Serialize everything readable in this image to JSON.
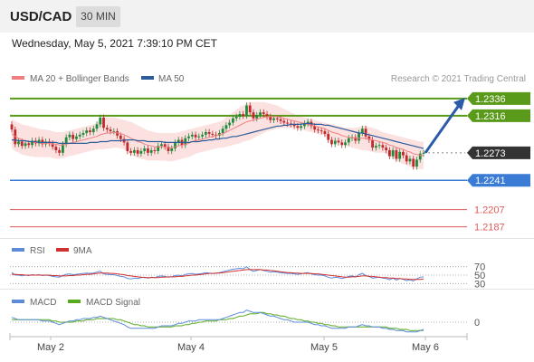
{
  "header": {
    "symbol": "USD/CAD",
    "timeframe": "30 MIN",
    "datetime": "Wednesday, May 5, 2021 7:39:10 PM CET"
  },
  "colors": {
    "up_candle": "#1f8a3a",
    "down_candle": "#c0282a",
    "bollinger_fill": "#fbdcdc",
    "ma20": "#f08080",
    "ma50": "#2e5c9a",
    "resistance": "#5a9a1a",
    "current": "#333333",
    "support": "#3a7bd5",
    "lower_level": "#e05a5a",
    "arrow": "#2b5aa8",
    "rsi": "#5b8bd9",
    "rsi_ma": "#d03030",
    "macd": "#5b8bd9",
    "macd_signal": "#5aaa20"
  },
  "chart_data": [
    {
      "type": "candlestick",
      "name": "price",
      "legend": [
        {
          "label": "MA 20 + Bollinger Bands",
          "color": "#f08080"
        },
        {
          "label": "MA 50",
          "color": "#2e5c9a"
        }
      ],
      "credit": "Research © 2021 Trading Central",
      "x_ticks": [
        "May 2",
        "May 4",
        "May 5",
        "May 6"
      ],
      "ylim": [
        1.2175,
        1.2358
      ],
      "levels": [
        {
          "value": 1.2336,
          "label": "1.2336",
          "kind": "resistance"
        },
        {
          "value": 1.2316,
          "label": "1.2316",
          "kind": "resistance"
        },
        {
          "value": 1.2273,
          "label": "1.2273",
          "kind": "current"
        },
        {
          "value": 1.2241,
          "label": "1.2241",
          "kind": "support"
        },
        {
          "value": 1.2207,
          "label": "1.2207",
          "kind": "lower"
        },
        {
          "value": 1.2187,
          "label": "1.2187",
          "kind": "lower"
        }
      ],
      "close": [
        1.23,
        1.2283,
        1.2286,
        1.2281,
        1.2284,
        1.2282,
        1.2287,
        1.2284,
        1.2288,
        1.2283,
        1.2286,
        1.2284,
        1.228,
        1.2276,
        1.2273,
        1.2283,
        1.2291,
        1.2294,
        1.2289,
        1.2292,
        1.2294,
        1.2296,
        1.2299,
        1.2297,
        1.2301,
        1.2306,
        1.2314,
        1.2302,
        1.23,
        1.2298,
        1.2298,
        1.2293,
        1.2289,
        1.2285,
        1.2275,
        1.2273,
        1.2276,
        1.2272,
        1.2275,
        1.2278,
        1.2273,
        1.2276,
        1.2275,
        1.2281,
        1.2283,
        1.228,
        1.2275,
        1.2278,
        1.2285,
        1.2288,
        1.2282,
        1.229,
        1.2292,
        1.2294,
        1.2291,
        1.2292,
        1.2294,
        1.2297,
        1.2295,
        1.2294,
        1.2293,
        1.2296,
        1.2301,
        1.2305,
        1.2308,
        1.2313,
        1.2315,
        1.2318,
        1.2316,
        1.2328,
        1.232,
        1.2313,
        1.2317,
        1.232,
        1.2318,
        1.2315,
        1.2311,
        1.2313,
        1.2312,
        1.231,
        1.2308,
        1.2307,
        1.2306,
        1.2304,
        1.2302,
        1.2304,
        1.2307,
        1.2309,
        1.2304,
        1.23,
        1.2299,
        1.2298,
        1.2295,
        1.2288,
        1.2283,
        1.2287,
        1.2285,
        1.2282,
        1.2285,
        1.229,
        1.2291,
        1.2287,
        1.2296,
        1.2301,
        1.2292,
        1.2288,
        1.2279,
        1.2281,
        1.2282,
        1.2279,
        1.2276,
        1.2269,
        1.2276,
        1.2266,
        1.2274,
        1.227,
        1.2263,
        1.2266,
        1.2257,
        1.2265,
        1.2272,
        1.2273
      ],
      "ma20": [
        1.2295,
        1.2292,
        1.229,
        1.2288,
        1.2287,
        1.2286,
        1.2286,
        1.2285,
        1.2285,
        1.2284,
        1.2284,
        1.2284,
        1.2283,
        1.2283,
        1.2282,
        1.2282,
        1.2283,
        1.2284,
        1.2285,
        1.2286,
        1.2287,
        1.2288,
        1.2289,
        1.229,
        1.2291,
        1.2292,
        1.2294,
        1.2295,
        1.2296,
        1.2296,
        1.2297,
        1.2296,
        1.2295,
        1.2294,
        1.2292,
        1.229,
        1.2288,
        1.2286,
        1.2285,
        1.2283,
        1.2282,
        1.2281,
        1.228,
        1.228,
        1.228,
        1.228,
        1.2279,
        1.2279,
        1.228,
        1.2281,
        1.2282,
        1.2283,
        1.2284,
        1.2286,
        1.2287,
        1.2288,
        1.2289,
        1.229,
        1.2291,
        1.2292,
        1.2293,
        1.2294,
        1.2295,
        1.2297,
        1.2299,
        1.2301,
        1.2303,
        1.2305,
        1.2307,
        1.2309,
        1.231,
        1.2311,
        1.2312,
        1.2313,
        1.2314,
        1.2315,
        1.2315,
        1.2315,
        1.2315,
        1.2314,
        1.2313,
        1.2312,
        1.2311,
        1.231,
        1.2309,
        1.2308,
        1.2307,
        1.2306,
        1.2305,
        1.2304,
        1.2303,
        1.2302,
        1.2301,
        1.2299,
        1.2297,
        1.2296,
        1.2295,
        1.2293,
        1.2292,
        1.2291,
        1.2291,
        1.229,
        1.229,
        1.229,
        1.229,
        1.2289,
        1.2288,
        1.2287,
        1.2286,
        1.2285,
        1.2284,
        1.2282,
        1.2281,
        1.2279,
        1.2278,
        1.2277,
        1.2275,
        1.2274,
        1.2272,
        1.2271,
        1.227,
        1.227
      ],
      "bb_upper": [
        1.2312,
        1.231,
        1.2308,
        1.2306,
        1.2305,
        1.2304,
        1.2303,
        1.2302,
        1.2301,
        1.23,
        1.23,
        1.2299,
        1.2298,
        1.2297,
        1.2297,
        1.2297,
        1.2298,
        1.2299,
        1.23,
        1.2301,
        1.2302,
        1.2303,
        1.2304,
        1.2305,
        1.2306,
        1.2308,
        1.2312,
        1.2313,
        1.2314,
        1.2314,
        1.2314,
        1.2313,
        1.2312,
        1.2311,
        1.231,
        1.2309,
        1.2307,
        1.2305,
        1.2303,
        1.2301,
        1.2299,
        1.2298,
        1.2297,
        1.2296,
        1.2296,
        1.2296,
        1.2296,
        1.2296,
        1.2296,
        1.2297,
        1.2298,
        1.2299,
        1.23,
        1.2301,
        1.2302,
        1.2303,
        1.2304,
        1.2305,
        1.2306,
        1.2307,
        1.2308,
        1.2309,
        1.2311,
        1.2314,
        1.2317,
        1.232,
        1.2323,
        1.2326,
        1.2328,
        1.2331,
        1.2332,
        1.2332,
        1.2332,
        1.2332,
        1.2332,
        1.2331,
        1.233,
        1.2329,
        1.2328,
        1.2326,
        1.2324,
        1.2322,
        1.232,
        1.2318,
        1.2316,
        1.2315,
        1.2314,
        1.2313,
        1.2312,
        1.2311,
        1.231,
        1.2309,
        1.2308,
        1.2307,
        1.2306,
        1.2305,
        1.2304,
        1.2303,
        1.2302,
        1.2302,
        1.2302,
        1.2302,
        1.2303,
        1.2304,
        1.2304,
        1.2303,
        1.2302,
        1.2301,
        1.2299,
        1.2297,
        1.2296,
        1.2295,
        1.2294,
        1.2293,
        1.2292,
        1.2291,
        1.229,
        1.2289,
        1.2288,
        1.2287,
        1.2286,
        1.2286
      ],
      "bb_lower": [
        1.2278,
        1.2275,
        1.2273,
        1.2271,
        1.227,
        1.2269,
        1.2269,
        1.2268,
        1.2268,
        1.2268,
        1.2268,
        1.2268,
        1.2267,
        1.2266,
        1.2266,
        1.2267,
        1.2268,
        1.2269,
        1.227,
        1.2271,
        1.2272,
        1.2273,
        1.2274,
        1.2275,
        1.2276,
        1.2277,
        1.2277,
        1.2277,
        1.2278,
        1.2278,
        1.2279,
        1.2279,
        1.2278,
        1.2277,
        1.2274,
        1.2271,
        1.2269,
        1.2267,
        1.2266,
        1.2265,
        1.2264,
        1.2264,
        1.2264,
        1.2264,
        1.2264,
        1.2264,
        1.2263,
        1.2263,
        1.2264,
        1.2265,
        1.2266,
        1.2267,
        1.2268,
        1.227,
        1.2272,
        1.2273,
        1.2274,
        1.2275,
        1.2276,
        1.2277,
        1.2278,
        1.2279,
        1.2279,
        1.228,
        1.2281,
        1.2282,
        1.2283,
        1.2284,
        1.2286,
        1.2287,
        1.2288,
        1.229,
        1.2292,
        1.2294,
        1.2296,
        1.2298,
        1.2299,
        1.23,
        1.2301,
        1.2302,
        1.2302,
        1.2302,
        1.2302,
        1.2302,
        1.2301,
        1.23,
        1.2299,
        1.2298,
        1.2297,
        1.2296,
        1.2295,
        1.2294,
        1.2293,
        1.2291,
        1.2288,
        1.2286,
        1.2285,
        1.2283,
        1.2281,
        1.228,
        1.2279,
        1.2278,
        1.2277,
        1.2276,
        1.2276,
        1.2275,
        1.2274,
        1.2273,
        1.2273,
        1.2273,
        1.2272,
        1.2269,
        1.2267,
        1.2264,
        1.2262,
        1.226,
        1.2259,
        1.2257,
        1.2255,
        1.2254,
        1.2254,
        1.2254
      ],
      "ma50": [
        1.2288,
        1.2288,
        1.2287,
        1.2287,
        1.2287,
        1.2286,
        1.2286,
        1.2286,
        1.2285,
        1.2285,
        1.2285,
        1.2285,
        1.2285,
        1.2285,
        1.2284,
        1.2284,
        1.2284,
        1.2284,
        1.2284,
        1.2284,
        1.2284,
        1.2284,
        1.2284,
        1.2285,
        1.2285,
        1.2285,
        1.2286,
        1.2286,
        1.2286,
        1.2287,
        1.2287,
        1.2287,
        1.2287,
        1.2288,
        1.2288,
        1.2288,
        1.2288,
        1.2287,
        1.2287,
        1.2287,
        1.2286,
        1.2286,
        1.2286,
        1.2286,
        1.2286,
        1.2285,
        1.2285,
        1.2285,
        1.2285,
        1.2285,
        1.2285,
        1.2285,
        1.2285,
        1.2286,
        1.2286,
        1.2286,
        1.2287,
        1.2287,
        1.2288,
        1.2288,
        1.2289,
        1.2289,
        1.229,
        1.229,
        1.2291,
        1.2292,
        1.2292,
        1.2293,
        1.2294,
        1.2295,
        1.2296,
        1.2297,
        1.2298,
        1.2299,
        1.23,
        1.2301,
        1.2302,
        1.2303,
        1.2304,
        1.2304,
        1.2305,
        1.2305,
        1.2306,
        1.2306,
        1.2306,
        1.2306,
        1.2307,
        1.2307,
        1.2307,
        1.2306,
        1.2306,
        1.2306,
        1.2305,
        1.2305,
        1.2304,
        1.2303,
        1.2302,
        1.2301,
        1.23,
        1.2299,
        1.2298,
        1.2297,
        1.2296,
        1.2296,
        1.2295,
        1.2294,
        1.2293,
        1.2292,
        1.2291,
        1.229,
        1.2289,
        1.2288,
        1.2287,
        1.2286,
        1.2285,
        1.2284,
        1.2283,
        1.2282,
        1.2281,
        1.228,
        1.2279,
        1.2278
      ]
    },
    {
      "type": "line",
      "name": "rsi",
      "legend": [
        {
          "label": "RSI",
          "color": "#5b8bd9"
        },
        {
          "label": "9MA",
          "color": "#d03030"
        }
      ],
      "levels": [
        {
          "value": 70,
          "label": "70"
        },
        {
          "value": 50,
          "label": "50"
        },
        {
          "value": 30,
          "label": "30"
        }
      ],
      "ylim": [
        20,
        80
      ],
      "rsi": [
        56,
        50,
        50,
        48,
        50,
        49,
        51,
        50,
        51,
        49,
        50,
        49,
        47,
        46,
        45,
        49,
        52,
        53,
        51,
        52,
        53,
        54,
        55,
        54,
        55,
        57,
        59,
        53,
        52,
        51,
        51,
        49,
        47,
        46,
        42,
        41,
        43,
        42,
        44,
        45,
        43,
        45,
        44,
        47,
        48,
        47,
        45,
        46,
        49,
        50,
        48,
        52,
        53,
        54,
        52,
        53,
        54,
        56,
        55,
        54,
        54,
        56,
        58,
        60,
        62,
        64,
        65,
        66,
        65,
        70,
        63,
        59,
        61,
        63,
        61,
        59,
        57,
        58,
        57,
        56,
        55,
        54,
        54,
        53,
        52,
        53,
        55,
        56,
        53,
        51,
        50,
        50,
        48,
        45,
        43,
        45,
        44,
        42,
        44,
        47,
        48,
        46,
        51,
        54,
        49,
        47,
        43,
        44,
        45,
        43,
        42,
        39,
        43,
        38,
        42,
        40,
        37,
        39,
        36,
        41,
        45,
        46
      ],
      "rsi_ma": [
        52,
        52,
        51,
        51,
        50,
        50,
        50,
        50,
        50,
        50,
        50,
        50,
        49,
        49,
        48,
        48,
        48,
        49,
        49,
        50,
        50,
        51,
        52,
        52,
        53,
        54,
        55,
        55,
        55,
        54,
        54,
        53,
        52,
        51,
        49,
        48,
        47,
        46,
        45,
        44,
        44,
        44,
        44,
        44,
        45,
        45,
        46,
        46,
        46,
        47,
        47,
        48,
        49,
        50,
        50,
        51,
        52,
        53,
        54,
        54,
        55,
        55,
        56,
        57,
        58,
        59,
        60,
        61,
        62,
        63,
        63,
        63,
        63,
        63,
        62,
        62,
        61,
        60,
        59,
        58,
        57,
        56,
        56,
        55,
        55,
        54,
        54,
        54,
        54,
        53,
        53,
        52,
        51,
        50,
        49,
        48,
        47,
        46,
        45,
        45,
        46,
        46,
        47,
        48,
        48,
        47,
        47,
        46,
        45,
        44,
        44,
        43,
        43,
        42,
        42,
        41,
        41,
        40,
        40,
        40,
        40,
        41
      ]
    },
    {
      "type": "line",
      "name": "macd",
      "legend": [
        {
          "label": "MACD",
          "color": "#5b8bd9"
        },
        {
          "label": "MACD Signal",
          "color": "#5aaa20"
        }
      ],
      "levels": [
        {
          "value": 0,
          "label": "0"
        }
      ],
      "ylim": [
        -0.0012,
        0.0012
      ],
      "macd": [
        0.0004,
        0.0003,
        0.0002,
        0.0002,
        0.0002,
        0.0002,
        0.0002,
        0.0002,
        0.0002,
        0.0001,
        0.0001,
        0.0001,
        0.0,
        -0.0001,
        -0.0002,
        -0.0001,
        0.0,
        0.0001,
        0.0001,
        0.0002,
        0.0002,
        0.0003,
        0.0003,
        0.0003,
        0.0004,
        0.0004,
        0.0005,
        0.0004,
        0.0003,
        0.0002,
        0.0001,
        0.0,
        -0.0001,
        -0.0002,
        -0.0004,
        -0.0005,
        -0.0005,
        -0.0005,
        -0.0005,
        -0.0005,
        -0.0005,
        -0.0005,
        -0.0005,
        -0.0004,
        -0.0003,
        -0.0003,
        -0.0003,
        -0.0003,
        -0.0002,
        -0.0001,
        -0.0001,
        0.0,
        0.0001,
        0.0001,
        0.0001,
        0.0002,
        0.0002,
        0.0002,
        0.0002,
        0.0002,
        0.0002,
        0.0002,
        0.0003,
        0.0004,
        0.0005,
        0.0006,
        0.0007,
        0.0008,
        0.0008,
        0.001,
        0.0009,
        0.0008,
        0.0008,
        0.0008,
        0.0007,
        0.0006,
        0.0005,
        0.0005,
        0.0004,
        0.0003,
        0.0002,
        0.0002,
        0.0001,
        0.0,
        0.0,
        0.0,
        0.0,
        0.0,
        -0.0001,
        -0.0002,
        -0.0002,
        -0.0003,
        -0.0003,
        -0.0004,
        -0.0005,
        -0.0005,
        -0.0005,
        -0.0005,
        -0.0005,
        -0.0004,
        -0.0004,
        -0.0004,
        -0.0003,
        -0.0002,
        -0.0003,
        -0.0003,
        -0.0004,
        -0.0004,
        -0.0004,
        -0.0005,
        -0.0005,
        -0.0006,
        -0.0006,
        -0.0007,
        -0.0007,
        -0.0007,
        -0.0008,
        -0.0008,
        -0.0008,
        -0.0008,
        -0.0007,
        -0.0006
      ],
      "signal": [
        0.0002,
        0.0002,
        0.0002,
        0.0002,
        0.0002,
        0.0002,
        0.0002,
        0.0002,
        0.0002,
        0.0002,
        0.0002,
        0.0002,
        0.0001,
        0.0001,
        0.0,
        0.0,
        0.0,
        0.0,
        0.0,
        0.0001,
        0.0001,
        0.0001,
        0.0002,
        0.0002,
        0.0002,
        0.0003,
        0.0003,
        0.0003,
        0.0003,
        0.0003,
        0.0003,
        0.0002,
        0.0002,
        0.0001,
        0.0,
        -0.0001,
        -0.0002,
        -0.0002,
        -0.0003,
        -0.0003,
        -0.0004,
        -0.0004,
        -0.0004,
        -0.0004,
        -0.0004,
        -0.0004,
        -0.0004,
        -0.0004,
        -0.0003,
        -0.0003,
        -0.0003,
        -0.0002,
        -0.0002,
        -0.0001,
        -0.0001,
        0.0,
        0.0,
        0.0001,
        0.0001,
        0.0001,
        0.0001,
        0.0002,
        0.0002,
        0.0002,
        0.0003,
        0.0003,
        0.0004,
        0.0005,
        0.0005,
        0.0006,
        0.0007,
        0.0007,
        0.0007,
        0.0008,
        0.0008,
        0.0007,
        0.0007,
        0.0006,
        0.0006,
        0.0005,
        0.0005,
        0.0004,
        0.0003,
        0.0003,
        0.0002,
        0.0002,
        0.0001,
        0.0001,
        0.0,
        0.0,
        -0.0001,
        -0.0001,
        -0.0002,
        -0.0002,
        -0.0003,
        -0.0003,
        -0.0004,
        -0.0004,
        -0.0004,
        -0.0004,
        -0.0004,
        -0.0004,
        -0.0004,
        -0.0004,
        -0.0004,
        -0.0004,
        -0.0004,
        -0.0004,
        -0.0004,
        -0.0004,
        -0.0004,
        -0.0005,
        -0.0005,
        -0.0005,
        -0.0006,
        -0.0006,
        -0.0006,
        -0.0007,
        -0.0007,
        -0.0007,
        -0.0007,
        -0.0007
      ]
    }
  ]
}
